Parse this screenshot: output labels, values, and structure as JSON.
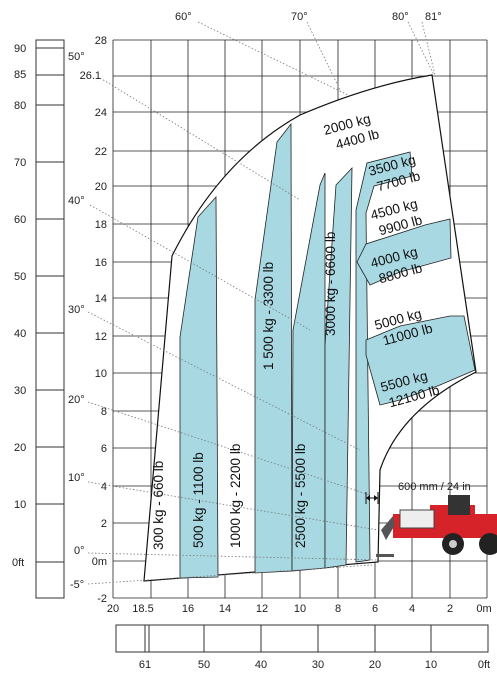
{
  "colors": {
    "zone_fill": "#a8d8e2",
    "grid": "#222222",
    "angle_line": "#777777",
    "machine": "#d6232a"
  },
  "axes": {
    "y_m": [
      "28",
      "26.1",
      "24",
      "22",
      "20",
      "18",
      "16",
      "14",
      "12",
      "10",
      "8",
      "6",
      "4",
      "2",
      "0m",
      "-2"
    ],
    "x_m": [
      "20",
      "18.5",
      "16",
      "14",
      "12",
      "10",
      "8",
      "6",
      "4",
      "2",
      "0m"
    ],
    "y_ft": [
      "90",
      "85",
      "80",
      "70",
      "60",
      "50",
      "40",
      "30",
      "20",
      "10",
      "0ft"
    ],
    "x_ft": [
      "61",
      "50",
      "40",
      "30",
      "20",
      "10",
      "0ft"
    ]
  },
  "angles": [
    "60°",
    "70°",
    "80°",
    "81°",
    "50°",
    "40°",
    "30°",
    "20°",
    "10°",
    "0°",
    "-5°"
  ],
  "zones": [
    {
      "label": "300 kg - 660 lb"
    },
    {
      "label": "500 kg - 1100 lb"
    },
    {
      "label": "1000 kg - 2200 lb"
    },
    {
      "label": "1 500 kg - 3300 lb"
    },
    {
      "label": "2500 kg - 5500 lb"
    },
    {
      "label": "3000 kg - 6600 lb"
    },
    {
      "label": "2000 kg",
      "label2": "4400 lb"
    },
    {
      "label": "3500 kg",
      "label2": "7700 lb"
    },
    {
      "label": "4500 kg",
      "label2": "9900 lb"
    },
    {
      "label": "4000 kg",
      "label2": "8800 lb"
    },
    {
      "label": "5000 kg",
      "label2": "11000 lb"
    },
    {
      "label": "5500 kg",
      "label2": "12100 lb"
    }
  ],
  "clearance_label": "600 mm / 24 in"
}
